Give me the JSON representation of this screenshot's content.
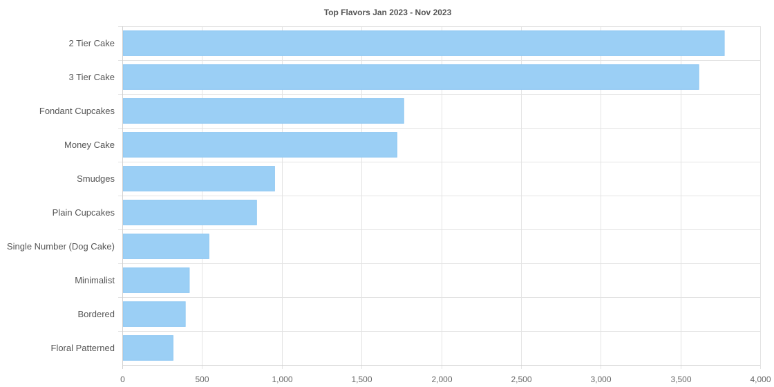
{
  "chart_data": {
    "type": "bar",
    "orientation": "horizontal",
    "title": "Top Flavors Jan 2023 - Nov 2023",
    "xlabel": "",
    "ylabel": "",
    "categories": [
      "2 Tier Cake",
      "3 Tier Cake",
      "Fondant Cupcakes",
      "Money Cake",
      "Smudges",
      "Plain Cupcakes",
      "Single Number (Dog Cake)",
      "Minimalist",
      "Bordered",
      "Floral Patterned"
    ],
    "values": [
      3775,
      3615,
      1765,
      1722,
      955,
      842,
      543,
      420,
      395,
      318
    ],
    "xlim": [
      0,
      4000
    ],
    "xticks": [
      0,
      500,
      1000,
      1500,
      2000,
      2500,
      3000,
      3500,
      4000
    ],
    "xtick_labels": [
      "0",
      "500",
      "1,000",
      "1,500",
      "2,000",
      "2,500",
      "3,000",
      "3,500",
      "4,000"
    ],
    "grid": true,
    "legend": "none",
    "colors": {
      "bar_fill": "#9bcff5",
      "bar_stroke": "#8ec7f2"
    }
  }
}
